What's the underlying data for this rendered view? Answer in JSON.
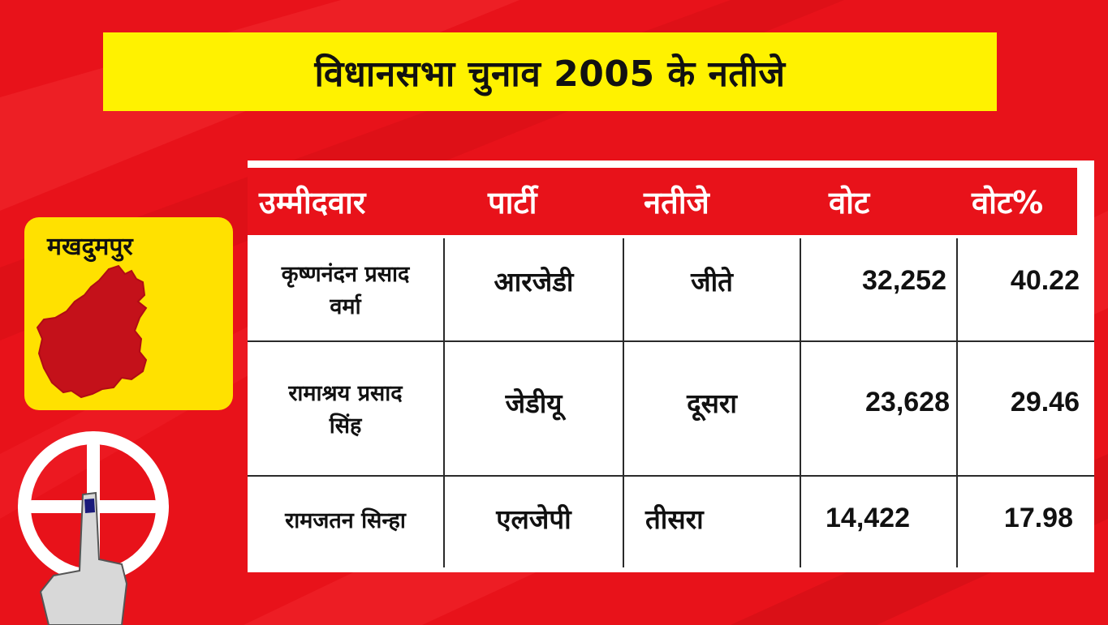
{
  "title": "विधानसभा चुनाव 2005 के नतीजे",
  "constituency": "मखदुमपुर",
  "colors": {
    "background": "#e8121a",
    "banner": "#fff200",
    "card": "#ffe100",
    "map": "#c4111a",
    "table_header": "#e8121a"
  },
  "icons": [
    "constituency-map-icon",
    "election-symbol-icon",
    "voting-finger-icon"
  ],
  "table": {
    "headers": {
      "candidate": "उम्मीदवार",
      "party": "पार्टी",
      "result": "नतीजे",
      "votes": "वोट",
      "vote_pct": "वोट%"
    },
    "rows": [
      {
        "candidate_line1": "कृष्णनंदन प्रसाद",
        "candidate_line2": "वर्मा",
        "party": "आरजेडी",
        "result": "जीते",
        "votes": "32,252",
        "vote_pct": "40.22"
      },
      {
        "candidate_line1": "रामाश्रय प्रसाद",
        "candidate_line2": "सिंह",
        "party": "जेडीयू",
        "result": "दूसरा",
        "votes": "23,628",
        "vote_pct": "29.46"
      },
      {
        "candidate_line1": "रामजतन सिन्हा",
        "candidate_line2": "",
        "party": "एलजेपी",
        "result": "तीसरा",
        "votes": "14,422",
        "vote_pct": "17.98"
      }
    ]
  }
}
